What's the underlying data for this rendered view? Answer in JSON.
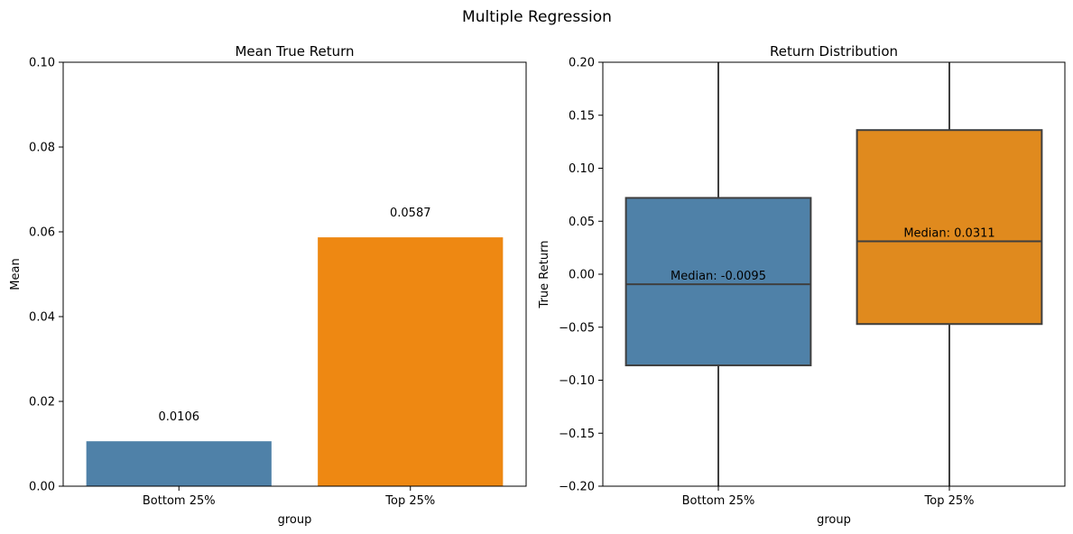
{
  "figure_title": "Multiple Regression",
  "chart_data": [
    {
      "type": "bar",
      "title": "Mean True Return",
      "xlabel": "group",
      "ylabel": "Mean",
      "categories": [
        "Bottom 25%",
        "Top 25%"
      ],
      "values": [
        0.0106,
        0.0587
      ],
      "value_labels": [
        "0.0106",
        "0.0587"
      ],
      "colors": [
        "#4f81a8",
        "#ee8812"
      ],
      "ylim": [
        0,
        0.1
      ],
      "yticks": [
        0,
        0.02,
        0.04,
        0.06,
        0.08,
        0.1
      ],
      "ytick_labels": [
        "0.00",
        "0.02",
        "0.04",
        "0.06",
        "0.08",
        "0.10"
      ],
      "grid": false
    },
    {
      "type": "box",
      "title": "Return Distribution",
      "xlabel": "group",
      "ylabel": "True Return",
      "categories": [
        "Bottom 25%",
        "Top 25%"
      ],
      "boxes": [
        {
          "q1": -0.086,
          "median": -0.0095,
          "q3": 0.072,
          "whisker_low": -0.2,
          "whisker_high": 0.2,
          "label": "Median: -0.0095"
        },
        {
          "q1": -0.047,
          "median": 0.0311,
          "q3": 0.136,
          "whisker_low": -0.2,
          "whisker_high": 0.2,
          "label": "Median: 0.0311"
        }
      ],
      "colors": [
        "#4f81a8",
        "#e08a1e"
      ],
      "ylim": [
        -0.2,
        0.2
      ],
      "yticks": [
        -0.2,
        -0.15,
        -0.1,
        -0.05,
        0,
        0.05,
        0.1,
        0.15,
        0.2
      ],
      "ytick_labels": [
        "−0.20",
        "−0.15",
        "−0.10",
        "−0.05",
        "0.00",
        "0.05",
        "0.10",
        "0.15",
        "0.20"
      ],
      "grid": false
    }
  ]
}
